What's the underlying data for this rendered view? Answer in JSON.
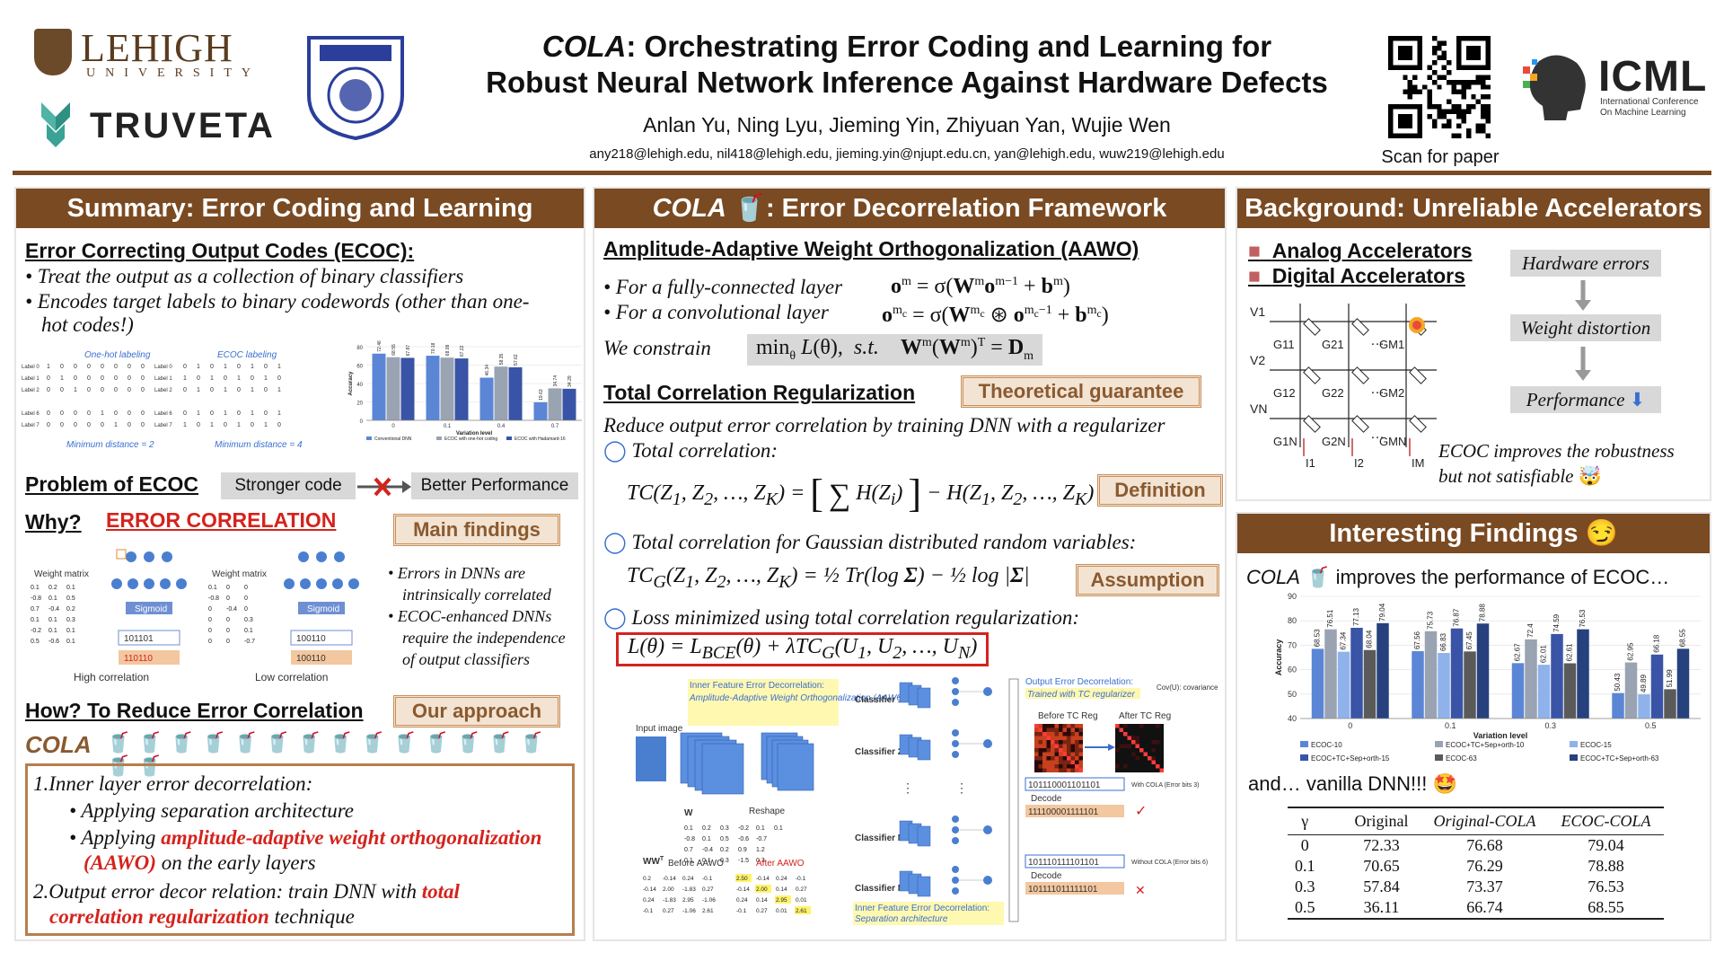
{
  "header": {
    "lehigh_word": "LEHIGH",
    "lehigh_sub": "UNIVERSITY",
    "truveta_word": "TRUVETA",
    "title_italic": "COLA",
    "title_rest_l1": ": Orchestrating Error Coding and Learning for",
    "title_l2": "Robust Neural Network Inference Against Hardware Defects",
    "authors": "Anlan Yu, Ning Lyu, Jieming Yin, Zhiyuan Yan, Wujie Wen",
    "emails": "any218@lehigh.edu, nil418@lehigh.edu, jieming.yin@njupt.edu.cn, yan@lehigh.edu, wuw219@lehigh.edu",
    "scan_label": "Scan for paper",
    "icml_word": "ICML",
    "icml_sub1": "International Conference",
    "icml_sub2": "On Machine Learning"
  },
  "summary": {
    "header": "Summary: Error Coding and Learning",
    "ecoc_title": "Error Correcting Output Codes (ECOC):",
    "ecoc_b1": "• Treat the output as a collection of binary classifiers",
    "ecoc_b2": "• Encodes target labels to binary codewords (other than one-",
    "ecoc_b2b": "hot codes!)",
    "onehot_label": "One-hot labeling",
    "ecoc_label": "ECOC labeling",
    "min_dist_2": "Minimum distance = 2",
    "min_dist_4": "Minimum distance = 4",
    "problem_title": "Problem of ECOC",
    "stronger": "Stronger code",
    "better": "Better Performance",
    "why": "Why?",
    "err_corr": "ERROR CORRELATION",
    "main_findings": "Main findings",
    "f1a": "Errors in DNNs are",
    "f1b": "intrinsically correlated",
    "f2a": "ECOC-enhanced DNNs",
    "f2b": "require the independence",
    "f2c": "of output classifiers",
    "high_corr": "High correlation",
    "low_corr": "Low correlation",
    "weight_matrix": "Weight matrix",
    "sigmoid": "Sigmoid",
    "how_title": "How? To Reduce Error Correlation",
    "our_approach": "Our approach",
    "cola": "COLA",
    "s1": "1.Inner layer error decorrelation:",
    "s1a": "• Applying separation architecture",
    "s1b_pre": "• Applying ",
    "s1b_red": "amplitude-adaptive weight orthogonalization",
    "s1c_red": "(AAWO)",
    "s1c_rest": " on the early layers",
    "s2_pre": "2.Output error decor relation: train DNN with ",
    "s2_red1": "total",
    "s2_red2": "correlation regularization",
    "s2_rest": " technique"
  },
  "mini_chart": {
    "type": "bar",
    "categories": [
      "0",
      "0.1",
      "0.4",
      "0.7"
    ],
    "xlabel": "Variation level",
    "ylabel": "Accuracy",
    "ylim": [
      0,
      80
    ],
    "series": [
      {
        "name": "Conventional DNN",
        "values": [
          72.46,
          70.18,
          46.34,
          19.63
        ],
        "color": "#5b86d6"
      },
      {
        "name": "ECOC with one-hot coding",
        "values": [
          68.55,
          68.09,
          58.35,
          34.74
        ],
        "color": "#9aa3b2"
      },
      {
        "name": "ECOC with Hadamard-16",
        "values": [
          67.87,
          67.22,
          57.62,
          34.29
        ],
        "color": "#3954a6"
      }
    ]
  },
  "framework": {
    "header_italic": "COLA",
    "header_rest": ": Error Decorrelation Framework",
    "aawo_title": "Amplitude-Adaptive Weight Orthogonalization (AAWO)",
    "fc": "• For a fully-connected layer",
    "conv": "• For a convolutional layer",
    "we_constrain": "We constrain",
    "tcr_title": "Total Correlation Regularization",
    "theoretical": "Theoretical guarantee",
    "reduce": "Reduce output error correlation by training DNN with a regularizer",
    "tc": "Total correlation:",
    "definition": "Definition",
    "tc_gauss": "Total correlation for Gaussian distributed random variables:",
    "assumption": "Assumption",
    "loss": "Loss minimized using total correlation regularization:",
    "inner_dec": "Inner Feature Error Decorrelation:",
    "inner_aawo": "Amplitude-Adaptive Weight Orthogonalization (AAWO)",
    "input_image": "Input image",
    "reshape": "Reshape",
    "before_aawo": "Before AAWO",
    "after_aawo": "After AAWO",
    "classifier1": "Classifier 1",
    "classifier2": "Classifier 2",
    "classifierN1": "Classifier N-1",
    "classifierN": "Classifier N",
    "inner_sep1": "Inner Feature Error Decorrelation:",
    "inner_sep2": "Separation architecture",
    "out_dec": "Output Error Decorrelation:",
    "out_tc": "Trained with TC regularizer",
    "before_tc": "Before TC Reg",
    "after_tc": "After TC Reg",
    "cov_note": "Cov(U): covariance matrix of output absolute error",
    "code1": "101110001101101",
    "decode": "Decode",
    "code1d": "111100001111101",
    "with_cola": "With COLA (Error bits 3)",
    "code2": "101110111101101",
    "code2d": "101111011111101",
    "without_cola": "Without COLA (Error bits 6)"
  },
  "background": {
    "header": "Background: Unreliable Accelerators",
    "analog": "Analog Accelerators",
    "digital": "Digital Accelerators",
    "hw_errors": "Hardware errors",
    "weight_dist": "Weight distortion",
    "performance": "Performance",
    "ecoc_note1": "ECOC improves the robustness",
    "ecoc_note2": "but not satisfiable"
  },
  "findings": {
    "header": "Interesting Findings",
    "cola_improves_italic": "COLA",
    "cola_improves_rest": " improves the performance of ECOC…",
    "vanilla": "and… vanilla DNN!!!"
  },
  "chart_data": {
    "type": "bar",
    "categories": [
      "0",
      "0.1",
      "0.3",
      "0.5"
    ],
    "xlabel": "Variation level",
    "ylabel": "Accuracy",
    "ylim": [
      40,
      90
    ],
    "yticks": [
      40,
      50,
      60,
      70,
      80,
      90
    ],
    "legend_placement": "bottom",
    "series": [
      {
        "name": "ECOC-10",
        "values": [
          68.53,
          67.56,
          62.67,
          50.43
        ],
        "color": "#5b86d6"
      },
      {
        "name": "ECOC+TC+Sep+orth-10",
        "values": [
          76.51,
          75.73,
          72.4,
          62.95
        ],
        "color": "#9aa3b2"
      },
      {
        "name": "ECOC-15",
        "values": [
          67.34,
          66.83,
          62.01,
          49.89
        ],
        "color": "#8fb2ea"
      },
      {
        "name": "ECOC+TC+Sep+orth-15",
        "values": [
          77.13,
          76.87,
          74.59,
          66.18
        ],
        "color": "#3954a6"
      },
      {
        "name": "ECOC-63",
        "values": [
          68.04,
          67.45,
          62.61,
          51.99
        ],
        "color": "#5a5a5a"
      },
      {
        "name": "ECOC+TC+Sep+orth-63",
        "values": [
          79.04,
          78.88,
          76.53,
          68.55
        ],
        "color": "#26417e"
      }
    ]
  },
  "results_table": {
    "headers": [
      "γ",
      "Original",
      "Original-COLA",
      "ECOC-COLA"
    ],
    "rows": [
      [
        "0",
        "72.33",
        "76.68",
        "79.04"
      ],
      [
        "0.1",
        "70.65",
        "76.29",
        "78.88"
      ],
      [
        "0.3",
        "57.84",
        "73.37",
        "76.53"
      ],
      [
        "0.5",
        "36.11",
        "66.74",
        "68.55"
      ]
    ]
  },
  "colors": {
    "brown": "#7a4a22",
    "red": "#d4231d",
    "tag_bg": "#f3e3d2"
  }
}
